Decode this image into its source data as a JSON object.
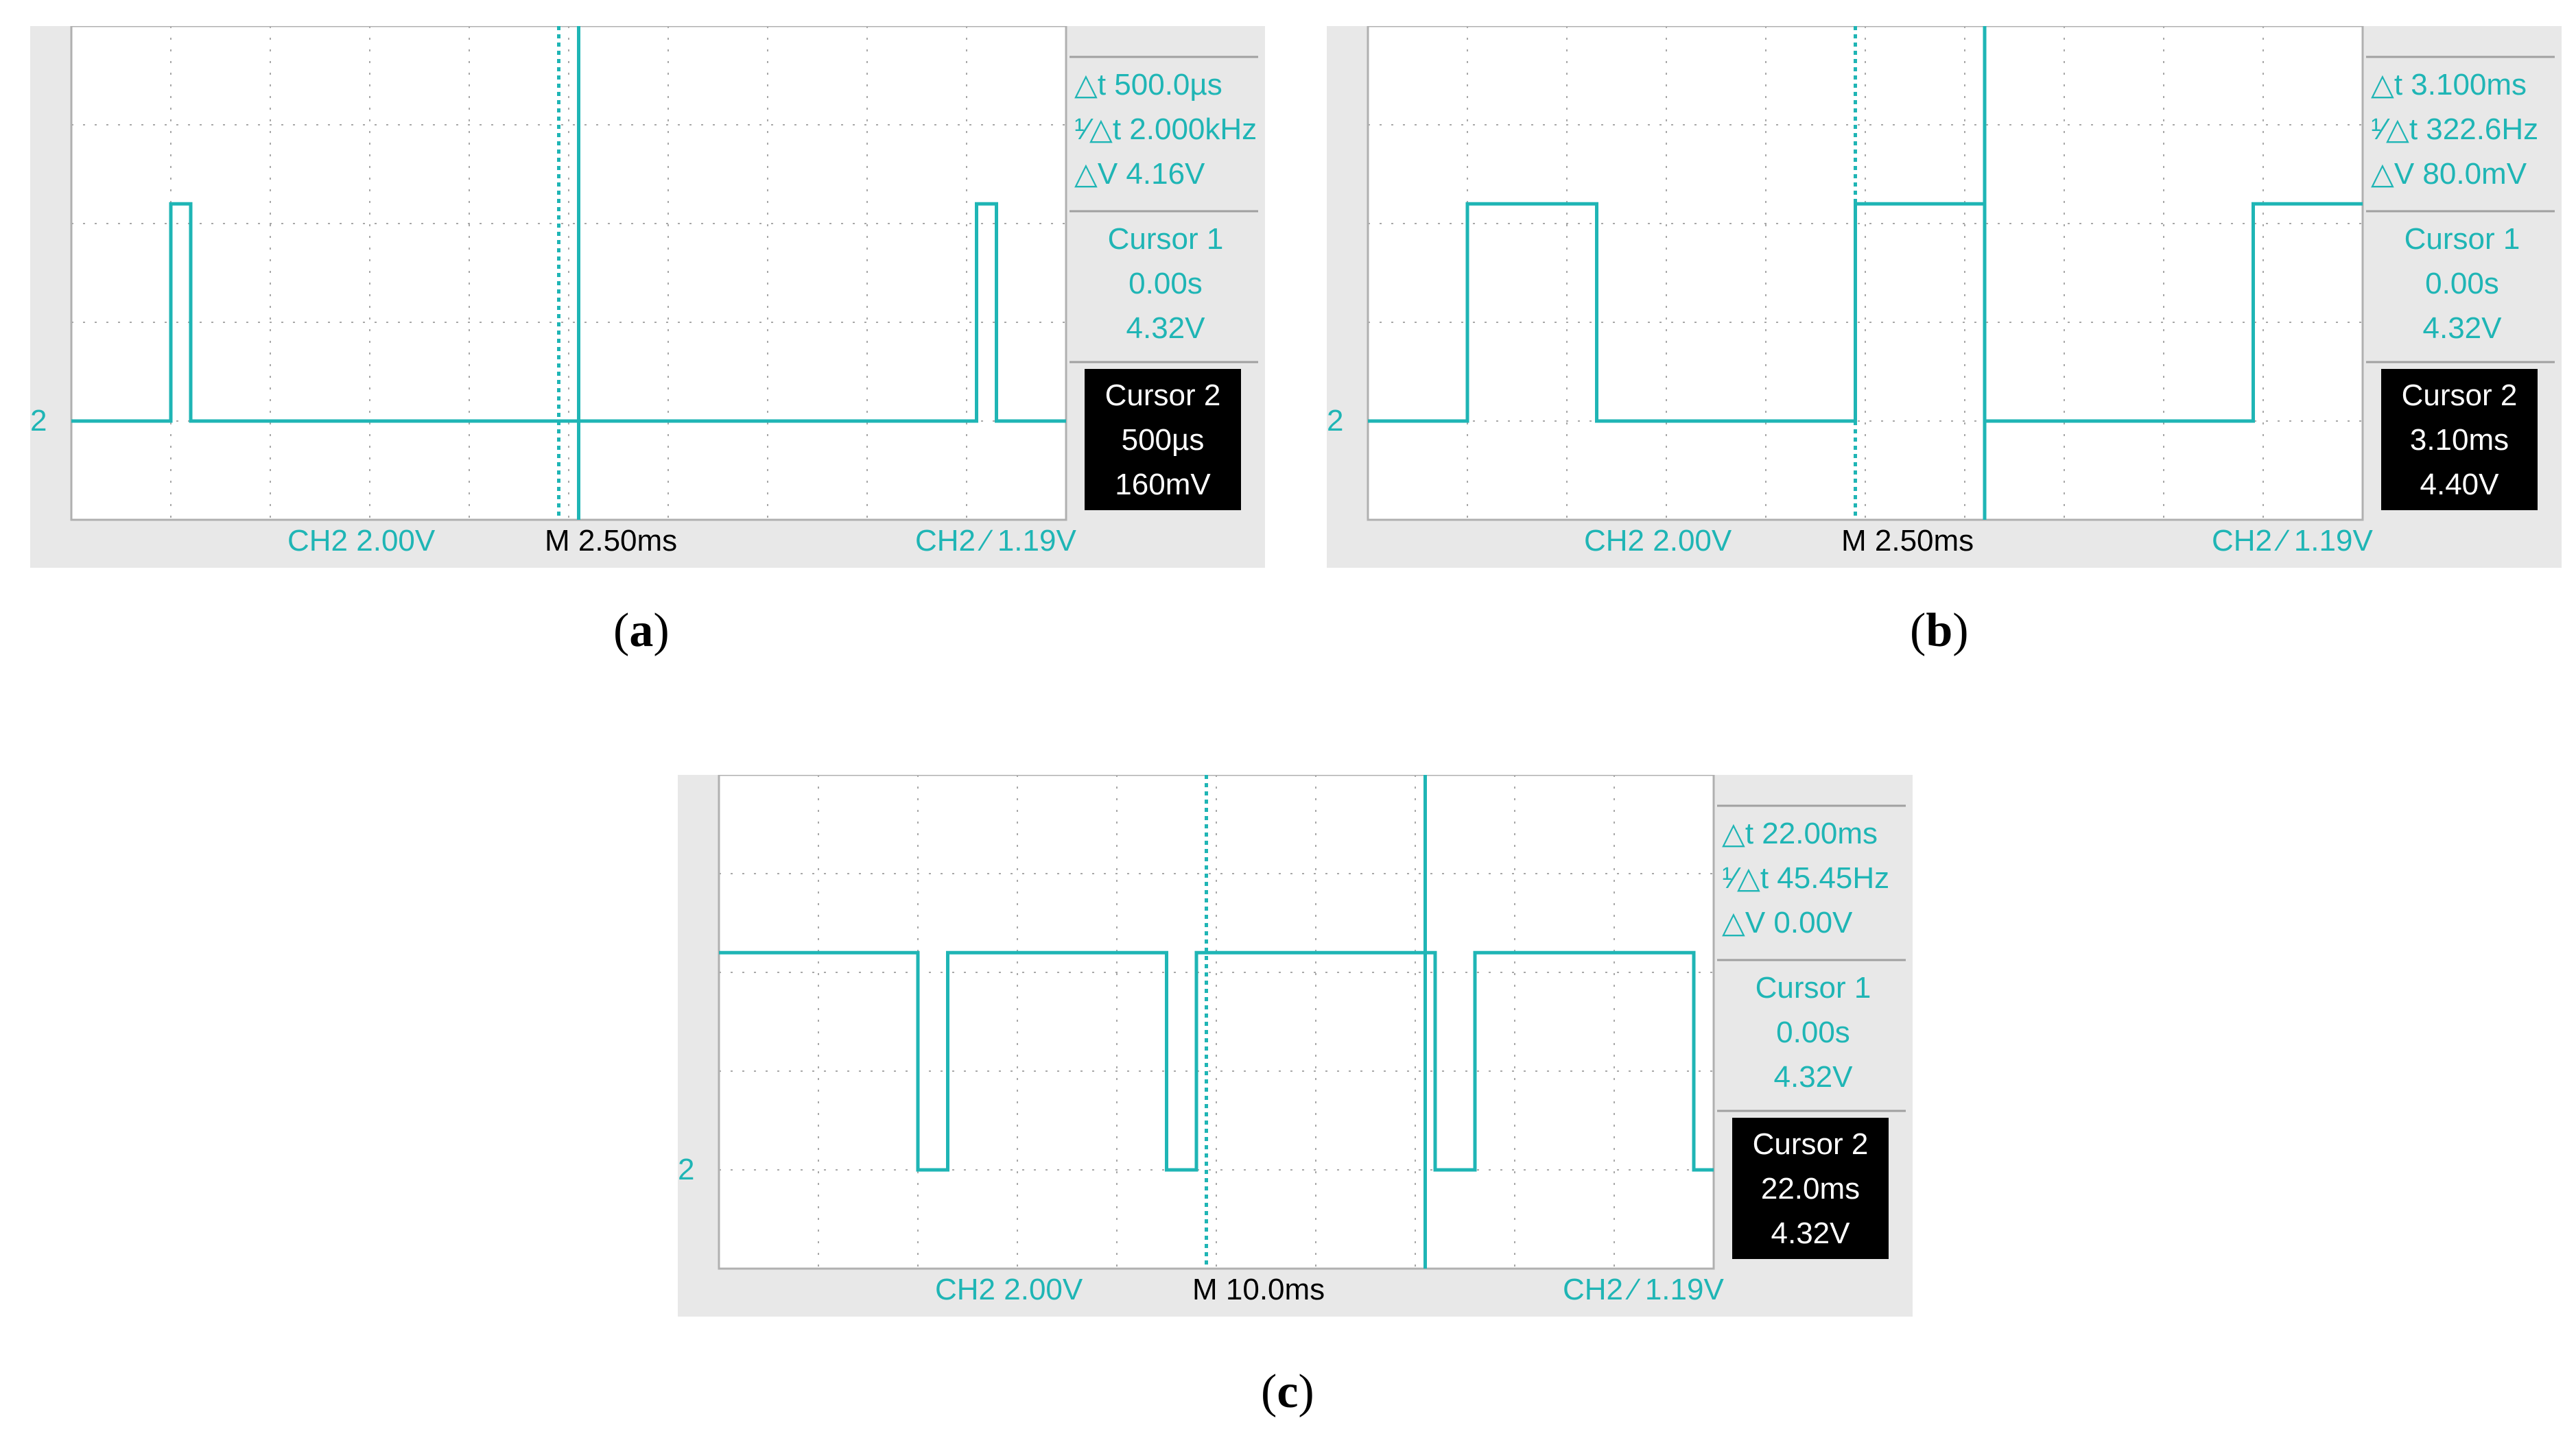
{
  "colors": {
    "trace": "#1fb5b5",
    "frame": "#e8e8e8",
    "screen": "#ffffff",
    "grid": "#a8a8a8"
  },
  "panels": [
    {
      "id": "a",
      "caption": "a",
      "readouts": {
        "delta_t": "500.0µs",
        "inv_delta_t": "2.000kHz",
        "delta_v": "4.16V"
      },
      "cursor1": {
        "label": "Cursor 1",
        "time": "0.00s",
        "volt": "4.32V"
      },
      "cursor2": {
        "label": "Cursor 2",
        "time": "500µs",
        "volt": "160mV"
      },
      "bottom": {
        "ch_scale": "CH2  2.00V",
        "timebase": "M 2.50ms",
        "trigger": "CH2 ∕ 1.19V"
      },
      "marker": "2"
    },
    {
      "id": "b",
      "caption": "b",
      "readouts": {
        "delta_t": "3.100ms",
        "inv_delta_t": "322.6Hz",
        "delta_v": "80.0mV"
      },
      "cursor1": {
        "label": "Cursor 1",
        "time": "0.00s",
        "volt": "4.32V"
      },
      "cursor2": {
        "label": "Cursor 2",
        "time": "3.10ms",
        "volt": "4.40V"
      },
      "bottom": {
        "ch_scale": "CH2  2.00V",
        "timebase": "M 2.50ms",
        "trigger": "CH2 ∕ 1.19V"
      },
      "marker": "2"
    },
    {
      "id": "c",
      "caption": "c",
      "readouts": {
        "delta_t": "22.00ms",
        "inv_delta_t": "45.45Hz",
        "delta_v": "0.00V"
      },
      "cursor1": {
        "label": "Cursor 1",
        "time": "0.00s",
        "volt": "4.32V"
      },
      "cursor2": {
        "label": "Cursor 2",
        "time": "22.0ms",
        "volt": "4.32V"
      },
      "bottom": {
        "ch_scale": "CH2  2.00V",
        "timebase": "M 10.0ms",
        "trigger": "CH2 ∕ 1.19V"
      },
      "marker": "2"
    }
  ],
  "chart_data": [
    {
      "type": "line",
      "title": "",
      "series": [
        {
          "x_div": [
            0,
            1.0,
            1.0,
            1.2,
            1.2,
            9.1,
            9.1,
            9.3,
            9.3,
            10
          ],
          "y_div": [
            1,
            1,
            3.2,
            3.2,
            1,
            1,
            3.2,
            3.2,
            1,
            1
          ]
        }
      ],
      "xlim_div": [
        0,
        10
      ],
      "ylim_div": [
        0,
        5
      ],
      "grid": true,
      "cursor1_x_div": 4.9,
      "cursor2_x_div": 5.1
    },
    {
      "type": "line",
      "title": "",
      "series": [
        {
          "x_div": [
            0,
            1.0,
            1.0,
            2.3,
            2.3,
            4.9,
            4.9,
            6.2,
            6.2,
            8.9,
            8.9,
            10
          ],
          "y_div": [
            1,
            1,
            3.2,
            3.2,
            1,
            1,
            3.2,
            3.2,
            1,
            1,
            3.2,
            3.2
          ]
        }
      ],
      "xlim_div": [
        0,
        10
      ],
      "ylim_div": [
        0,
        5
      ],
      "grid": true,
      "cursor1_x_div": 4.9,
      "cursor2_x_div": 6.2
    },
    {
      "type": "line",
      "title": "",
      "series": [
        {
          "x_div": [
            0,
            2.0,
            2.0,
            2.3,
            2.3,
            4.5,
            4.5,
            4.8,
            4.8,
            7.2,
            7.2,
            7.6,
            7.6,
            9.8,
            9.8,
            10
          ],
          "y_div": [
            3.2,
            3.2,
            1,
            1,
            3.2,
            3.2,
            1,
            1,
            3.2,
            3.2,
            1,
            1,
            3.2,
            3.2,
            1,
            1
          ]
        }
      ],
      "xlim_div": [
        0,
        10
      ],
      "ylim_div": [
        0,
        5
      ],
      "grid": true,
      "cursor1_x_div": 4.9,
      "cursor2_x_div": 7.1
    }
  ]
}
